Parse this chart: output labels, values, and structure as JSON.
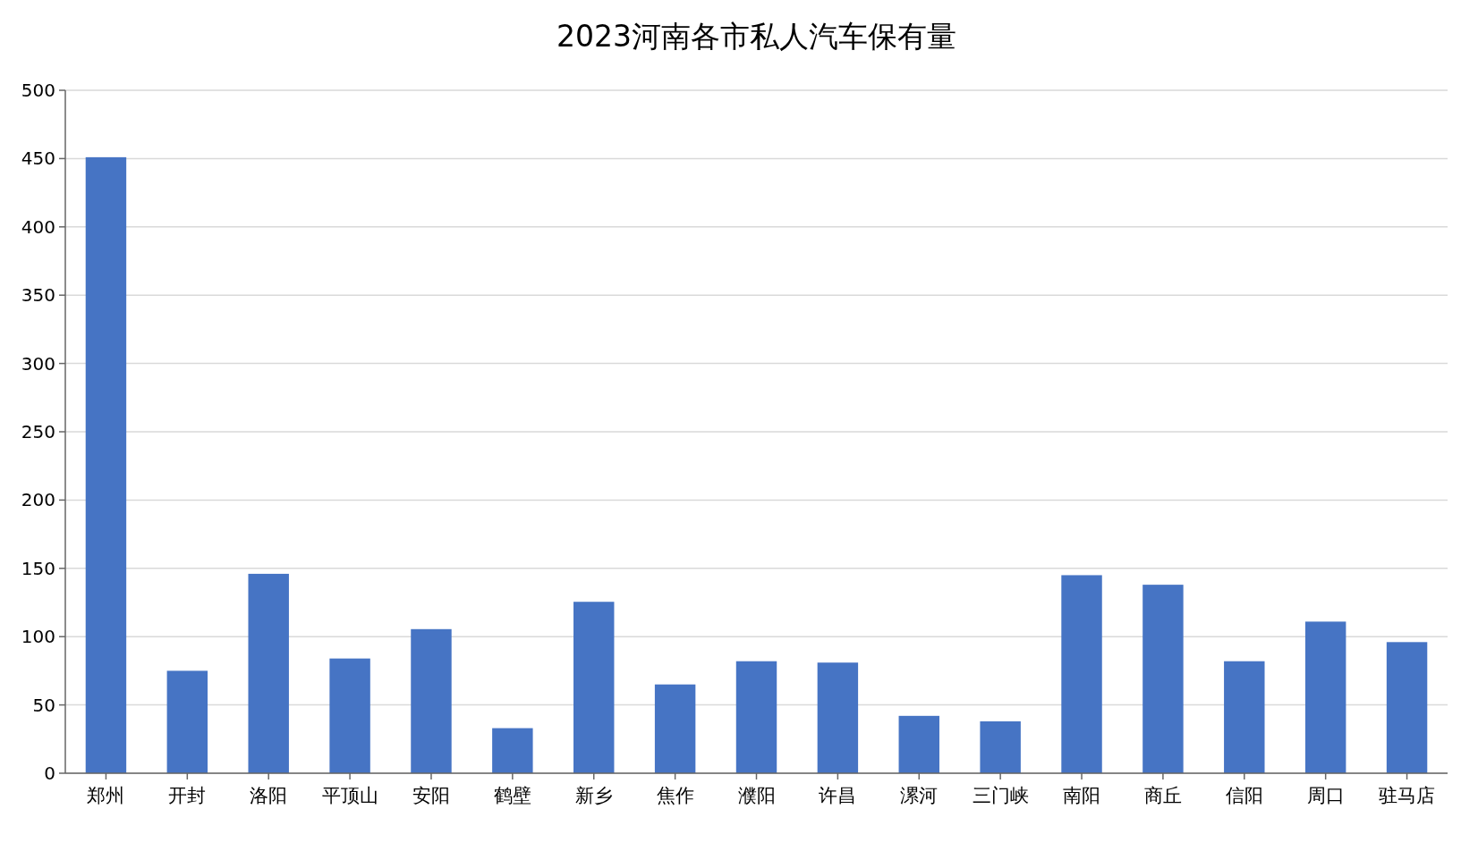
{
  "chart_data": {
    "type": "bar",
    "title": "2023河南各市私人汽车保有量",
    "categories": [
      "郑州",
      "开封",
      "洛阳",
      "平顶山",
      "安阳",
      "鹤壁",
      "新乡",
      "焦作",
      "濮阳",
      "许昌",
      "漯河",
      "三门峡",
      "南阳",
      "商丘",
      "信阳",
      "周口",
      "驻马店"
    ],
    "values": [
      451,
      75,
      146,
      84,
      105.5,
      33,
      125.5,
      65,
      82,
      81,
      42,
      38,
      145,
      138,
      82,
      111,
      96
    ],
    "color": "#4674c4",
    "ylim": [
      0,
      500
    ],
    "yticks": [
      0,
      50,
      100,
      150,
      200,
      250,
      300,
      350,
      400,
      450,
      500
    ],
    "grid": "y"
  }
}
